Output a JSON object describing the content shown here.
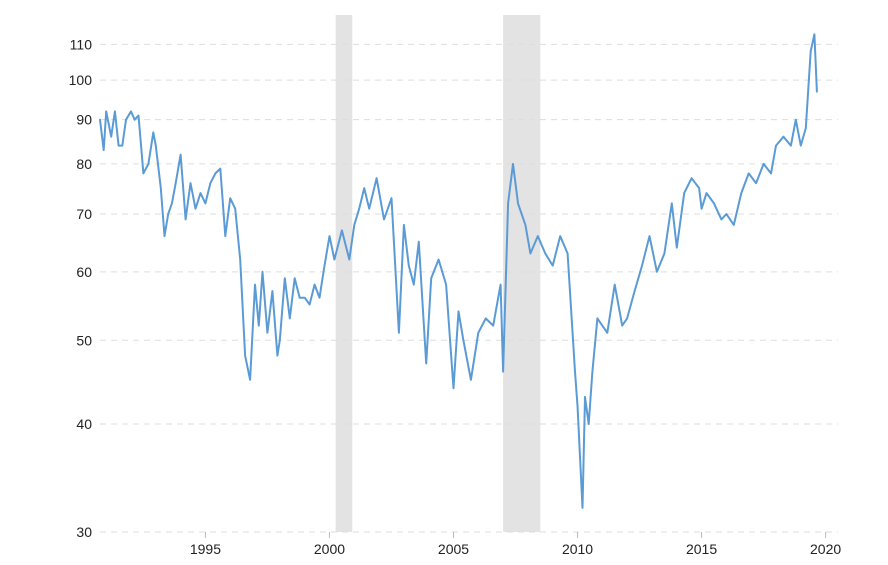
{
  "chart_data": {
    "type": "line",
    "title": "",
    "xlabel": "",
    "ylabel": "",
    "y_scale": "log",
    "ylim": [
      30,
      118
    ],
    "xlim": [
      1990.75,
      2020.5
    ],
    "grid": "horizontal dashed",
    "legend": "none",
    "y_ticks": [
      30,
      40,
      50,
      60,
      70,
      80,
      90,
      100,
      110
    ],
    "x_ticks": [
      1995,
      2000,
      2005,
      2010,
      2015,
      2020
    ],
    "y_tick_labels": [
      "30",
      "40",
      "50",
      "60",
      "70",
      "80",
      "90",
      "100",
      "110"
    ],
    "x_tick_labels": [
      "1995",
      "2000",
      "2005",
      "2010",
      "2015",
      "2020"
    ],
    "shaded_periods": [
      [
        2000.25,
        2000.92
      ],
      [
        2007.0,
        2008.5
      ]
    ],
    "colors": {
      "line": "#5b9bd5",
      "recession": "#e3e3e3",
      "grid": "#dddddd",
      "text": "#222222"
    },
    "series": [
      {
        "x": [
          1990.75,
          1990.9,
          1991.0,
          1991.2,
          1991.35,
          1991.5,
          1991.65,
          1991.8,
          1992.0,
          1992.15,
          1992.3,
          1992.5,
          1992.7,
          1992.9,
          1993.0,
          1993.2,
          1993.35,
          1993.5,
          1993.65,
          1993.8,
          1994.0,
          1994.2,
          1994.4,
          1994.6,
          1994.8,
          1995.0,
          1995.2,
          1995.4,
          1995.6,
          1995.8,
          1996.0,
          1996.2,
          1996.4,
          1996.6,
          1996.8,
          1997.0,
          1997.15,
          1997.3,
          1997.5,
          1997.7,
          1997.9,
          1998.0,
          1998.2,
          1998.4,
          1998.6,
          1998.8,
          1999.0,
          1999.2,
          1999.4,
          1999.6,
          1999.8,
          2000.0,
          2000.2,
          2000.5,
          2000.8,
          2001.0,
          2001.2,
          2001.4,
          2001.6,
          2001.9,
          2002.2,
          2002.5,
          2002.8,
          2003.0,
          2003.2,
          2003.4,
          2003.6,
          2003.9,
          2004.1,
          2004.4,
          2004.7,
          2005.0,
          2005.2,
          2005.4,
          2005.7,
          2006.0,
          2006.3,
          2006.6,
          2006.9,
          2007.0,
          2007.2,
          2007.4,
          2007.6,
          2007.9,
          2008.1,
          2008.4,
          2008.7,
          2009.0,
          2009.3,
          2009.6,
          2009.9,
          2010.0,
          2010.2,
          2010.3,
          2010.45,
          2010.6,
          2010.8,
          2011.0,
          2011.2,
          2011.5,
          2011.8,
          2012.0,
          2012.3,
          2012.6,
          2012.9,
          2013.2,
          2013.5,
          2013.8,
          2014.0,
          2014.3,
          2014.6,
          2014.9,
          2015.0,
          2015.2,
          2015.5,
          2015.8,
          2016.0,
          2016.3,
          2016.6,
          2016.9,
          2017.2,
          2017.5,
          2017.8,
          2018.0,
          2018.3,
          2018.6,
          2018.8,
          2019.0,
          2019.2,
          2019.4,
          2019.55,
          2019.65
        ],
        "values": [
          90,
          83,
          92,
          86,
          92,
          84,
          84,
          90,
          92,
          90,
          91,
          78,
          80,
          87,
          84,
          75,
          66,
          70,
          72,
          76,
          82,
          69,
          76,
          71,
          74,
          72,
          76,
          78,
          79,
          66,
          73,
          71,
          62,
          48,
          45,
          58,
          52,
          60,
          51,
          57,
          48,
          50,
          59,
          53,
          59,
          56,
          56,
          55,
          58,
          56,
          61,
          66,
          62,
          67,
          62,
          68,
          71,
          75,
          71,
          77,
          69,
          73,
          51,
          68,
          61,
          58,
          65,
          47,
          59,
          62,
          58,
          44,
          54,
          50,
          45,
          51,
          53,
          52,
          58,
          46,
          72,
          80,
          72,
          68,
          63,
          66,
          63,
          61,
          66,
          63,
          46,
          42,
          32,
          43,
          40,
          46,
          53,
          52,
          51,
          58,
          52,
          53,
          57,
          61,
          66,
          60,
          63,
          72,
          64,
          74,
          77,
          75,
          71,
          74,
          72,
          69,
          70,
          68,
          74,
          78,
          76,
          80,
          78,
          84,
          86,
          84,
          90,
          84,
          88,
          108,
          113,
          97
        ]
      }
    ]
  }
}
